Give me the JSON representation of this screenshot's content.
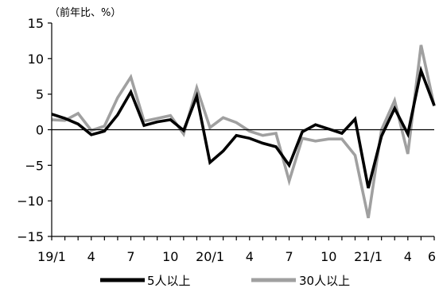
{
  "chart_data": {
    "type": "line",
    "unit_label": "（前年比、%）",
    "y_range": [
      -15,
      15
    ],
    "y_ticks": [
      "15",
      "10",
      "5",
      "0",
      "−5",
      "−10",
      "−15"
    ],
    "y_tick_values": [
      15,
      10,
      5,
      0,
      -5,
      -10,
      -15
    ],
    "x_tick_labels": [
      "19/1",
      "4",
      "7",
      "10",
      "20/1",
      "4",
      "7",
      "10",
      "21/1",
      "4",
      "6"
    ],
    "x_tick_indices": [
      0,
      3,
      6,
      9,
      12,
      15,
      18,
      21,
      24,
      27,
      29
    ],
    "zero_line": true,
    "legend_position": "bottom",
    "series": [
      {
        "name": "5人以上",
        "color": "#000000",
        "values": [
          2.2,
          1.6,
          0.8,
          -0.7,
          -0.2,
          2.1,
          5.3,
          0.6,
          1.1,
          1.4,
          -0.1,
          4.7,
          -4.6,
          -3.0,
          -0.8,
          -1.2,
          -1.9,
          -2.4,
          -5.0,
          -0.3,
          0.7,
          0.1,
          -0.5,
          1.5,
          -8.2,
          -0.9,
          3.0,
          -0.6,
          8.3,
          3.4
        ]
      },
      {
        "name": "30人以上",
        "color": "#a0a0a0",
        "values": [
          1.4,
          1.3,
          2.3,
          -0.1,
          0.5,
          4.5,
          7.4,
          1.2,
          1.6,
          2.0,
          -0.6,
          5.9,
          0.3,
          1.7,
          1.0,
          -0.2,
          -0.8,
          -0.5,
          -7.2,
          -1.2,
          -1.6,
          -1.3,
          -1.3,
          -3.6,
          -12.4,
          0.0,
          4.1,
          -3.4,
          11.9,
          3.3
        ]
      }
    ]
  }
}
